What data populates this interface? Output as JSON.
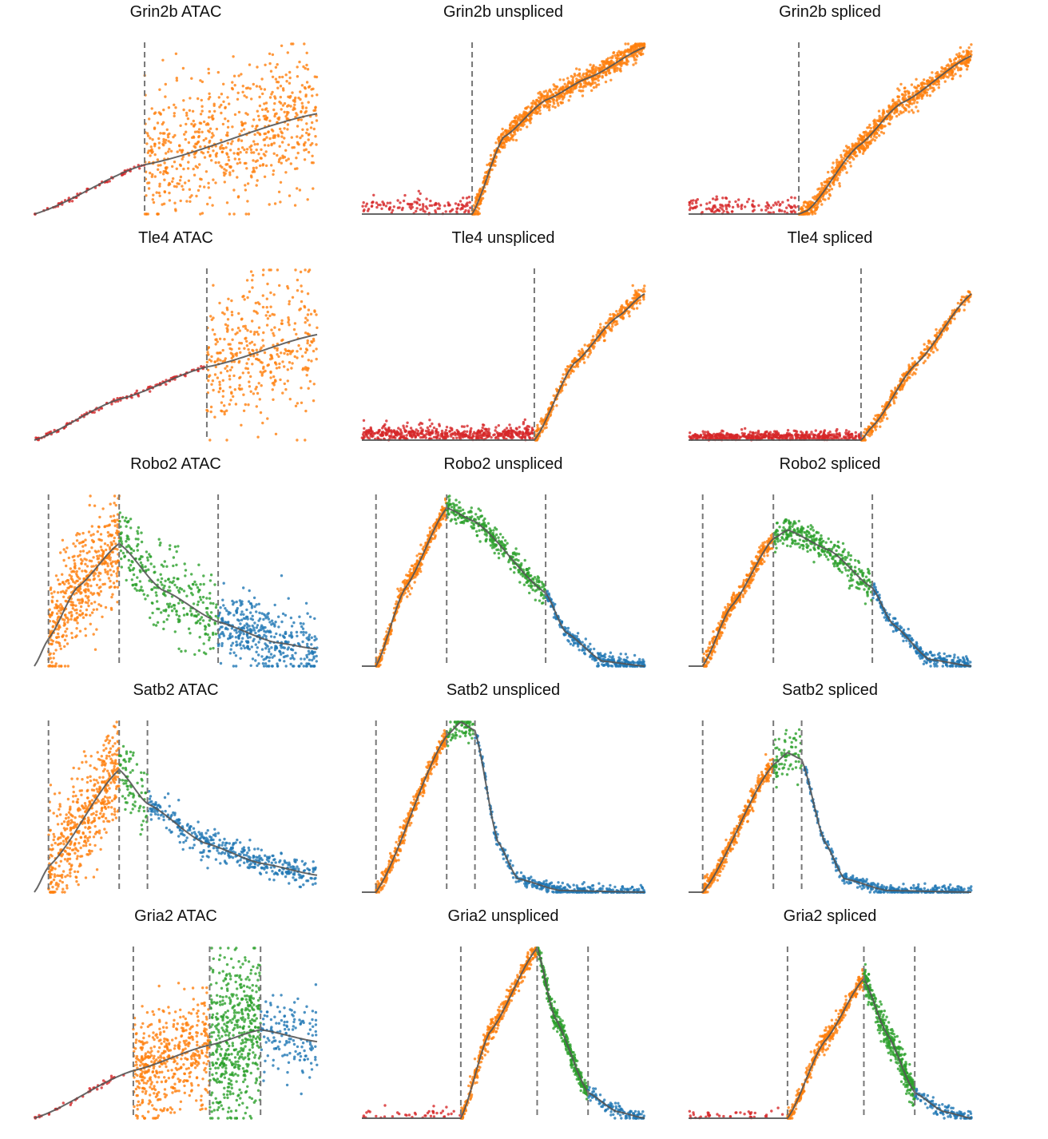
{
  "figure": {
    "description_title": ""
  },
  "colors": {
    "red": "#d62728",
    "orange": "#ff7f0e",
    "green": "#2ca02c",
    "blue": "#1f77b4",
    "curve": "#555555",
    "dashed": "#777777"
  },
  "chart_data": [
    {
      "type": "scatter",
      "title": "Grin2b ATAC",
      "xlim": [
        0,
        1
      ],
      "ylim": [
        0,
        1
      ],
      "switches": [
        0.39
      ],
      "curve": [
        [
          0,
          0
        ],
        [
          0.39,
          0.29
        ],
        [
          1,
          0.59
        ]
      ],
      "scatter": [
        {
          "color": "red",
          "from": 0,
          "to": 0.39,
          "spread": 0.02,
          "along": true,
          "n": 60
        },
        {
          "color": "orange",
          "from": 0.39,
          "to": 1,
          "spread": 0.55,
          "along": true,
          "n": 700
        }
      ]
    },
    {
      "type": "scatter",
      "title": "Grin2b unspliced",
      "xlim": [
        0,
        1
      ],
      "ylim": [
        0,
        1
      ],
      "switches": [
        0.39
      ],
      "curve": [
        [
          0,
          0
        ],
        [
          0.39,
          0
        ],
        [
          0.5,
          0.45
        ],
        [
          0.65,
          0.67
        ],
        [
          0.8,
          0.8
        ],
        [
          1,
          0.98
        ]
      ],
      "scatter": [
        {
          "color": "red",
          "from": 0,
          "to": 0.39,
          "base": 0.06,
          "spread": 0.12,
          "n": 120
        },
        {
          "color": "orange",
          "from": 0.39,
          "to": 1,
          "spread": 0.09,
          "along": true,
          "n": 900
        }
      ]
    },
    {
      "type": "scatter",
      "title": "Grin2b spliced",
      "xlim": [
        0,
        1
      ],
      "ylim": [
        0,
        1
      ],
      "switches": [
        0.39
      ],
      "curve": [
        [
          0,
          0
        ],
        [
          0.39,
          0
        ],
        [
          0.42,
          0.02
        ],
        [
          0.6,
          0.4
        ],
        [
          0.75,
          0.65
        ],
        [
          1,
          0.93
        ]
      ],
      "scatter": [
        {
          "color": "red",
          "from": 0,
          "to": 0.39,
          "base": 0.05,
          "spread": 0.12,
          "n": 120
        },
        {
          "color": "orange",
          "from": 0.39,
          "to": 1,
          "spread": 0.09,
          "along": true,
          "n": 900
        }
      ]
    },
    {
      "type": "scatter",
      "title": "Tle4 ATAC",
      "xlim": [
        0,
        1
      ],
      "ylim": [
        0,
        1
      ],
      "switches": [
        0.61
      ],
      "curve": [
        [
          0,
          0
        ],
        [
          0.3,
          0.24
        ],
        [
          0.61,
          0.43
        ],
        [
          1,
          0.62
        ]
      ],
      "scatter": [
        {
          "color": "red",
          "from": 0,
          "to": 0.61,
          "spread": 0.02,
          "along": true,
          "n": 120
        },
        {
          "color": "orange",
          "from": 0.61,
          "to": 1,
          "spread": 0.6,
          "along": true,
          "n": 400
        }
      ]
    },
    {
      "type": "scatter",
      "title": "Tle4 unspliced",
      "xlim": [
        0,
        1
      ],
      "ylim": [
        0,
        1
      ],
      "switches": [
        0.61
      ],
      "curve": [
        [
          0,
          0
        ],
        [
          0.61,
          0
        ],
        [
          0.75,
          0.45
        ],
        [
          0.9,
          0.72
        ],
        [
          1,
          0.86
        ]
      ],
      "scatter": [
        {
          "color": "red",
          "from": 0,
          "to": 0.61,
          "base": 0.05,
          "spread": 0.1,
          "n": 500
        },
        {
          "color": "orange",
          "from": 0.61,
          "to": 1,
          "spread": 0.07,
          "along": true,
          "n": 400
        }
      ]
    },
    {
      "type": "scatter",
      "title": "Tle4 spliced",
      "xlim": [
        0,
        1
      ],
      "ylim": [
        0,
        1
      ],
      "switches": [
        0.61
      ],
      "curve": [
        [
          0,
          0
        ],
        [
          0.61,
          0
        ],
        [
          0.65,
          0.08
        ],
        [
          0.8,
          0.44
        ],
        [
          1,
          0.86
        ]
      ],
      "scatter": [
        {
          "color": "red",
          "from": 0,
          "to": 0.61,
          "base": 0.03,
          "spread": 0.06,
          "n": 500
        },
        {
          "color": "orange",
          "from": 0.61,
          "to": 1,
          "spread": 0.06,
          "along": true,
          "n": 400
        }
      ]
    },
    {
      "type": "scatter",
      "title": "Robo2 ATAC",
      "xlim": [
        0,
        1
      ],
      "ylim": [
        0,
        1
      ],
      "switches": [
        0.05,
        0.3,
        0.65
      ],
      "curve": [
        [
          0,
          0
        ],
        [
          0.05,
          0.16
        ],
        [
          0.15,
          0.46
        ],
        [
          0.3,
          0.72
        ],
        [
          0.45,
          0.45
        ],
        [
          0.65,
          0.26
        ],
        [
          0.85,
          0.14
        ],
        [
          1,
          0.1
        ]
      ],
      "scatter": [
        {
          "color": "orange",
          "from": 0.05,
          "to": 0.3,
          "spread": 0.45,
          "along": true,
          "n": 500
        },
        {
          "color": "green",
          "from": 0.3,
          "to": 0.65,
          "spread": 0.35,
          "along": true,
          "n": 300
        },
        {
          "color": "blue",
          "from": 0.65,
          "to": 1,
          "spread": 0.3,
          "along": true,
          "n": 400
        }
      ]
    },
    {
      "type": "scatter",
      "title": "Robo2 unspliced",
      "xlim": [
        0,
        1
      ],
      "ylim": [
        0,
        1
      ],
      "switches": [
        0.05,
        0.3,
        0.65
      ],
      "curve": [
        [
          0,
          0
        ],
        [
          0.05,
          0
        ],
        [
          0.15,
          0.45
        ],
        [
          0.3,
          0.93
        ],
        [
          0.4,
          0.85
        ],
        [
          0.65,
          0.43
        ],
        [
          0.72,
          0.2
        ],
        [
          0.85,
          0.03
        ],
        [
          1,
          0
        ]
      ],
      "scatter": [
        {
          "color": "orange",
          "from": 0.05,
          "to": 0.3,
          "spread": 0.08,
          "along": true,
          "n": 400
        },
        {
          "color": "green",
          "from": 0.3,
          "to": 0.65,
          "spread": 0.1,
          "along": true,
          "n": 350
        },
        {
          "color": "blue",
          "from": 0.65,
          "to": 1,
          "spread": 0.06,
          "along": true,
          "n": 300
        }
      ]
    },
    {
      "type": "scatter",
      "title": "Robo2 spliced",
      "xlim": [
        0,
        1
      ],
      "ylim": [
        0,
        1
      ],
      "switches": [
        0.05,
        0.3,
        0.65
      ],
      "curve": [
        [
          0,
          0
        ],
        [
          0.05,
          0
        ],
        [
          0.15,
          0.35
        ],
        [
          0.3,
          0.75
        ],
        [
          0.35,
          0.8
        ],
        [
          0.5,
          0.68
        ],
        [
          0.65,
          0.46
        ],
        [
          0.72,
          0.25
        ],
        [
          0.85,
          0.04
        ],
        [
          1,
          0
        ]
      ],
      "scatter": [
        {
          "color": "orange",
          "from": 0.05,
          "to": 0.3,
          "spread": 0.08,
          "along": true,
          "n": 400
        },
        {
          "color": "green",
          "from": 0.3,
          "to": 0.65,
          "spread": 0.12,
          "along": true,
          "n": 350
        },
        {
          "color": "blue",
          "from": 0.65,
          "to": 1,
          "spread": 0.06,
          "along": true,
          "n": 300
        }
      ]
    },
    {
      "type": "scatter",
      "title": "Satb2 ATAC",
      "xlim": [
        0,
        1
      ],
      "ylim": [
        0,
        1
      ],
      "switches": [
        0.05,
        0.3,
        0.4
      ],
      "curve": [
        [
          0,
          0
        ],
        [
          0.05,
          0.15
        ],
        [
          0.3,
          0.72
        ],
        [
          0.4,
          0.52
        ],
        [
          0.6,
          0.29
        ],
        [
          0.8,
          0.17
        ],
        [
          1,
          0.1
        ]
      ],
      "scatter": [
        {
          "color": "orange",
          "from": 0.05,
          "to": 0.3,
          "spread": 0.45,
          "along": true,
          "n": 500
        },
        {
          "color": "green",
          "from": 0.3,
          "to": 0.4,
          "spread": 0.25,
          "along": true,
          "n": 80
        },
        {
          "color": "blue",
          "from": 0.4,
          "to": 1,
          "spread": 0.12,
          "along": true,
          "n": 400
        }
      ]
    },
    {
      "type": "scatter",
      "title": "Satb2 unspliced",
      "xlim": [
        0,
        1
      ],
      "ylim": [
        0,
        1
      ],
      "switches": [
        0.05,
        0.3,
        0.4
      ],
      "curve": [
        [
          0,
          0
        ],
        [
          0.05,
          0
        ],
        [
          0.3,
          0.92
        ],
        [
          0.35,
          1
        ],
        [
          0.4,
          0.95
        ],
        [
          0.48,
          0.3
        ],
        [
          0.55,
          0.08
        ],
        [
          0.7,
          0.01
        ],
        [
          1,
          0
        ]
      ],
      "scatter": [
        {
          "color": "orange",
          "from": 0.05,
          "to": 0.3,
          "spread": 0.08,
          "along": true,
          "n": 400
        },
        {
          "color": "green",
          "from": 0.3,
          "to": 0.4,
          "spread": 0.1,
          "along": true,
          "n": 80
        },
        {
          "color": "blue",
          "from": 0.4,
          "to": 1,
          "spread": 0.05,
          "along": true,
          "n": 400
        }
      ]
    },
    {
      "type": "scatter",
      "title": "Satb2 spliced",
      "xlim": [
        0,
        1
      ],
      "ylim": [
        0,
        1
      ],
      "switches": [
        0.05,
        0.3,
        0.4
      ],
      "curve": [
        [
          0,
          0
        ],
        [
          0.05,
          0
        ],
        [
          0.3,
          0.75
        ],
        [
          0.35,
          0.82
        ],
        [
          0.4,
          0.78
        ],
        [
          0.48,
          0.3
        ],
        [
          0.55,
          0.08
        ],
        [
          0.7,
          0.01
        ],
        [
          1,
          0
        ]
      ],
      "scatter": [
        {
          "color": "orange",
          "from": 0.05,
          "to": 0.3,
          "spread": 0.08,
          "along": true,
          "n": 400
        },
        {
          "color": "green",
          "from": 0.3,
          "to": 0.4,
          "spread": 0.2,
          "along": true,
          "n": 80
        },
        {
          "color": "blue",
          "from": 0.4,
          "to": 1,
          "spread": 0.05,
          "along": true,
          "n": 400
        }
      ]
    },
    {
      "type": "scatter",
      "title": "Gria2 ATAC",
      "xlim": [
        0,
        1
      ],
      "ylim": [
        0,
        1
      ],
      "switches": [
        0.35,
        0.62,
        0.8
      ],
      "curve": [
        [
          0,
          0
        ],
        [
          0.35,
          0.28
        ],
        [
          0.62,
          0.43
        ],
        [
          0.8,
          0.52
        ],
        [
          1,
          0.45
        ]
      ],
      "scatter": [
        {
          "color": "red",
          "from": 0,
          "to": 0.35,
          "spread": 0.02,
          "along": true,
          "n": 40
        },
        {
          "color": "orange",
          "from": 0.35,
          "to": 0.62,
          "spread": 0.45,
          "along": true,
          "n": 500
        },
        {
          "color": "green",
          "from": 0.62,
          "to": 0.8,
          "spread": 0.7,
          "along": true,
          "n": 500
        },
        {
          "color": "blue",
          "from": 0.8,
          "to": 1,
          "spread": 0.35,
          "along": true,
          "n": 150
        }
      ]
    },
    {
      "type": "scatter",
      "title": "Gria2 unspliced",
      "xlim": [
        0,
        1
      ],
      "ylim": [
        0,
        1
      ],
      "switches": [
        0.35,
        0.62,
        0.8
      ],
      "curve": [
        [
          0,
          0
        ],
        [
          0.35,
          0
        ],
        [
          0.45,
          0.5
        ],
        [
          0.62,
          1
        ],
        [
          0.68,
          0.6
        ],
        [
          0.8,
          0.15
        ],
        [
          0.9,
          0.04
        ],
        [
          1,
          0
        ]
      ],
      "scatter": [
        {
          "color": "red",
          "from": 0,
          "to": 0.35,
          "base": 0.03,
          "spread": 0.06,
          "n": 40
        },
        {
          "color": "orange",
          "from": 0.35,
          "to": 0.62,
          "spread": 0.08,
          "along": true,
          "n": 400
        },
        {
          "color": "green",
          "from": 0.62,
          "to": 0.8,
          "spread": 0.08,
          "along": true,
          "n": 400
        },
        {
          "color": "blue",
          "from": 0.8,
          "to": 1,
          "spread": 0.06,
          "along": true,
          "n": 120
        }
      ]
    },
    {
      "type": "scatter",
      "title": "Gria2 spliced",
      "xlim": [
        0,
        1
      ],
      "ylim": [
        0,
        1
      ],
      "switches": [
        0.35,
        0.62,
        0.8
      ],
      "curve": [
        [
          0,
          0
        ],
        [
          0.35,
          0
        ],
        [
          0.48,
          0.45
        ],
        [
          0.62,
          0.82
        ],
        [
          0.7,
          0.5
        ],
        [
          0.8,
          0.15
        ],
        [
          0.9,
          0.04
        ],
        [
          1,
          0
        ]
      ],
      "scatter": [
        {
          "color": "red",
          "from": 0,
          "to": 0.35,
          "base": 0.03,
          "spread": 0.06,
          "n": 40
        },
        {
          "color": "orange",
          "from": 0.35,
          "to": 0.62,
          "spread": 0.08,
          "along": true,
          "n": 400
        },
        {
          "color": "green",
          "from": 0.62,
          "to": 0.8,
          "spread": 0.12,
          "along": true,
          "n": 400
        },
        {
          "color": "blue",
          "from": 0.8,
          "to": 1,
          "spread": 0.06,
          "along": true,
          "n": 120
        }
      ]
    }
  ]
}
